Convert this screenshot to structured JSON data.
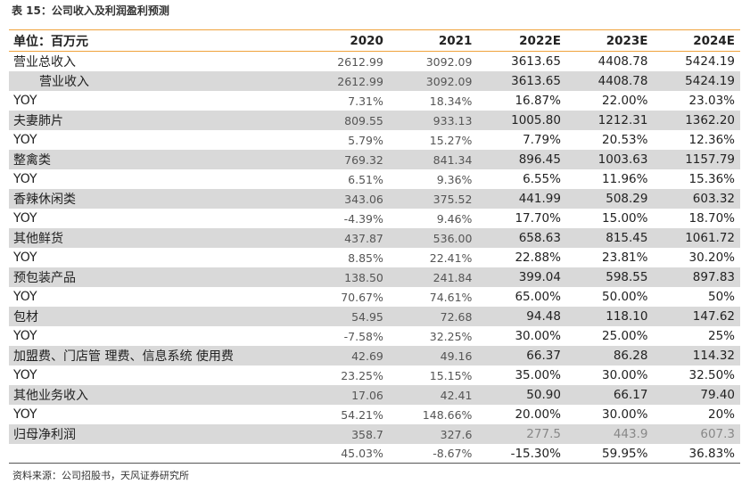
{
  "title": "表 15：公司收入及利润盈利预测",
  "source": "资料来源：公司招股书，天风证券研究所",
  "header": {
    "label": "单位：百万元",
    "years": [
      "2020",
      "2021",
      "2022E",
      "2023E",
      "2024E"
    ]
  },
  "rows": [
    {
      "label": "营业总收入",
      "values": [
        "2612.99",
        "3092.09",
        "3613.65",
        "4408.78",
        "5424.19"
      ]
    },
    {
      "label": "营业收入",
      "values": [
        "2612.99",
        "3092.09",
        "3613.65",
        "4408.78",
        "5424.19"
      ]
    },
    {
      "label": "YOY",
      "values": [
        "7.31%",
        "18.34%",
        "16.87%",
        "22.00%",
        "23.03%"
      ]
    },
    {
      "label": "夫妻肺片",
      "values": [
        "809.55",
        "933.13",
        "1005.80",
        "1212.31",
        "1362.20"
      ]
    },
    {
      "label": "YOY",
      "values": [
        "5.79%",
        "15.27%",
        "7.79%",
        "20.53%",
        "12.36%"
      ]
    },
    {
      "label": "整禽类",
      "values": [
        "769.32",
        "841.34",
        "896.45",
        "1003.63",
        "1157.79"
      ]
    },
    {
      "label": "YOY",
      "values": [
        "6.51%",
        "9.36%",
        "6.55%",
        "11.96%",
        "15.36%"
      ]
    },
    {
      "label": "香辣休闲类",
      "values": [
        "343.06",
        "375.52",
        "441.99",
        "508.29",
        "603.32"
      ]
    },
    {
      "label": "YOY",
      "values": [
        "-4.39%",
        "9.46%",
        "17.70%",
        "15.00%",
        "18.70%"
      ]
    },
    {
      "label": "其他鲜货",
      "values": [
        "437.87",
        "536.00",
        "658.63",
        "815.45",
        "1061.72"
      ]
    },
    {
      "label": "YOY",
      "values": [
        "8.85%",
        "22.41%",
        "22.88%",
        "23.81%",
        "30.20%"
      ]
    },
    {
      "label": "预包装产品",
      "values": [
        "138.50",
        "241.84",
        "399.04",
        "598.55",
        "897.83"
      ]
    },
    {
      "label": "YOY",
      "values": [
        "70.67%",
        "74.61%",
        "65.00%",
        "50.00%",
        "50%"
      ]
    },
    {
      "label": "包材",
      "values": [
        "54.95",
        "72.68",
        "94.48",
        "118.10",
        "147.62"
      ]
    },
    {
      "label": "YOY",
      "values": [
        "-7.58%",
        "32.25%",
        "30.00%",
        "25.00%",
        "25%"
      ]
    },
    {
      "label": "加盟费、门店管 理费、信息系统 使用费",
      "values": [
        "42.69",
        "49.16",
        "66.37",
        "86.28",
        "114.32"
      ]
    },
    {
      "label": "YOY",
      "values": [
        "23.25%",
        "15.15%",
        "35.00%",
        "30.00%",
        "32.50%"
      ]
    },
    {
      "label": "其他业务收入",
      "values": [
        "17.06",
        "42.41",
        "50.90",
        "66.17",
        "79.40"
      ]
    },
    {
      "label": "YOY",
      "values": [
        "54.21%",
        "148.66%",
        "20.00%",
        "30.00%",
        "20%"
      ]
    },
    {
      "label": "归母净利润",
      "values": [
        "358.7",
        "327.6",
        "277.5",
        "443.9",
        "607.3"
      ]
    },
    {
      "label": "",
      "values": [
        "45.03%",
        "-8.67%",
        "-15.30%",
        "59.95%",
        "36.83%"
      ]
    }
  ]
}
